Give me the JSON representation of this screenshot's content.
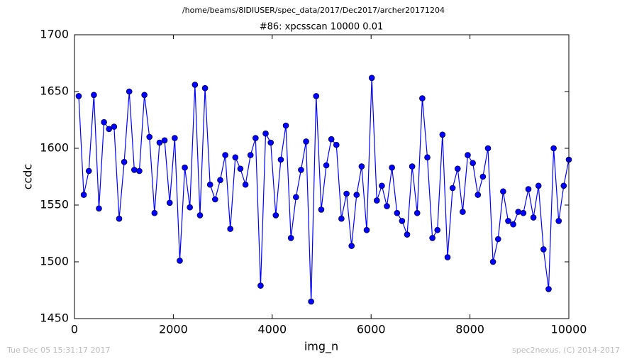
{
  "chart_data": {
    "type": "line",
    "suptitle": "/home/beams/8IDIUSER/spec_data/2017/Dec2017/archer20171204",
    "title": "#86: xpcsscan 10000 0.01",
    "xlabel": "img_n",
    "ylabel": "ccdc",
    "footer_left": "Tue Dec 05 15:31:17 2017",
    "footer_right": "spec2nexus, (C) 2014-2017",
    "xlim": [
      0,
      10000
    ],
    "xticks": [
      0,
      2000,
      4000,
      6000,
      8000,
      10000
    ],
    "ylim": [
      1450,
      1700
    ],
    "yticks": [
      1450,
      1500,
      1550,
      1600,
      1650,
      1700
    ],
    "grid": false,
    "x": [
      86,
      188,
      290,
      393,
      495,
      597,
      699,
      801,
      904,
      1006,
      1108,
      1210,
      1312,
      1415,
      1517,
      1619,
      1721,
      1823,
      1926,
      2028,
      2130,
      2232,
      2334,
      2437,
      2539,
      2641,
      2743,
      2845,
      2948,
      3050,
      3152,
      3254,
      3356,
      3459,
      3561,
      3663,
      3765,
      3867,
      3970,
      4072,
      4174,
      4276,
      4378,
      4481,
      4583,
      4685,
      4787,
      4889,
      4992,
      5094,
      5196,
      5298,
      5400,
      5503,
      5605,
      5707,
      5809,
      5911,
      6014,
      6116,
      6218,
      6320,
      6422,
      6525,
      6627,
      6729,
      6831,
      6933,
      7036,
      7138,
      7240,
      7342,
      7444,
      7547,
      7649,
      7751,
      7853,
      7955,
      8058,
      8160,
      8262,
      8364,
      8466,
      8569,
      8671,
      8773,
      8875,
      8977,
      9080,
      9182,
      9284,
      9386,
      9488,
      9591,
      9693,
      9795,
      9897,
      10000
    ],
    "series": [
      {
        "color": "#0000ff",
        "values": [
          1646,
          1559,
          1580,
          1647,
          1547,
          1623,
          1617,
          1619,
          1538,
          1588,
          1650,
          1581,
          1580,
          1647,
          1610,
          1543,
          1605,
          1607,
          1552,
          1609,
          1501,
          1583,
          1548,
          1656,
          1541,
          1653,
          1568,
          1555,
          1572,
          1594,
          1529,
          1592,
          1582,
          1568,
          1594,
          1609,
          1479,
          1613,
          1605,
          1541,
          1590,
          1620,
          1521,
          1557,
          1581,
          1606,
          1465,
          1646,
          1546,
          1585,
          1608,
          1603,
          1538,
          1560,
          1514,
          1559,
          1584,
          1528,
          1662,
          1554,
          1567,
          1549,
          1583,
          1543,
          1536,
          1524,
          1584,
          1543,
          1644,
          1592,
          1521,
          1528,
          1612,
          1504,
          1565,
          1582,
          1544,
          1594,
          1587,
          1559,
          1575,
          1600,
          1500,
          1520,
          1562,
          1536,
          1533,
          1544,
          1543,
          1564,
          1539,
          1567,
          1511,
          1476,
          1600,
          1536,
          1567,
          1590
        ]
      }
    ]
  }
}
